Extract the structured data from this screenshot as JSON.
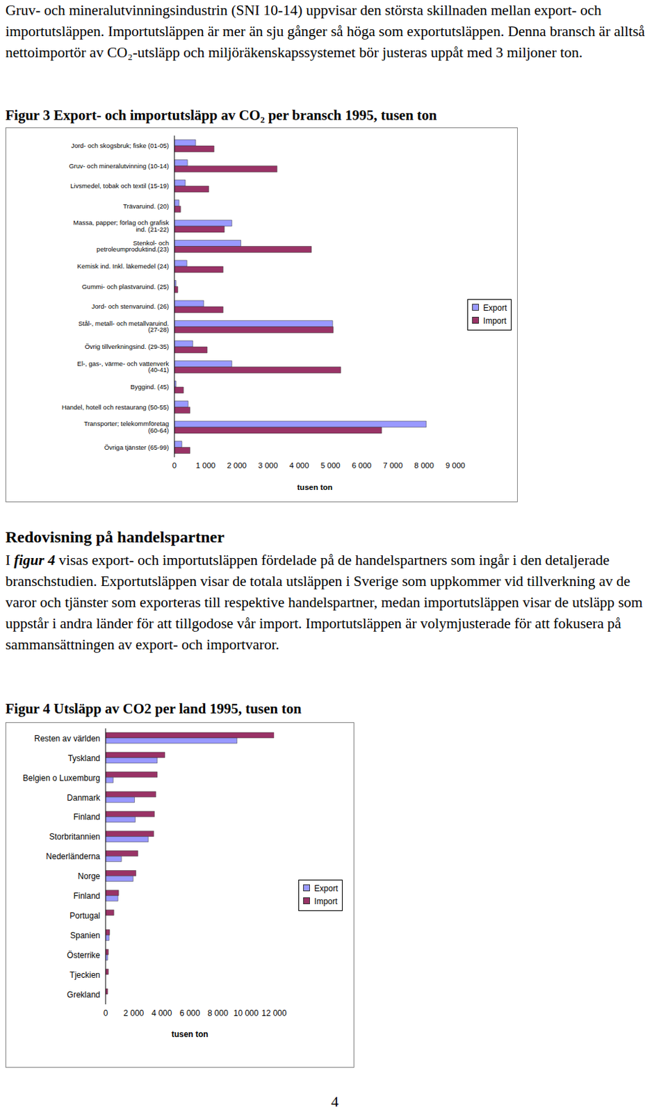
{
  "text": {
    "paragraph1": "Gruv- och mineralutvinningsindustrin (SNI 10-14) uppvisar den största skillnaden mellan export- och importutsläppen. Importutsläppen är mer än sju gånger så höga som exportutsläppen. Denna bransch är alltså nettoimportör av CO₂-utsläpp och miljöräkenskapssystemet bör justeras uppåt med 3 miljoner ton.",
    "heading": "Redovisning på handelspartner",
    "paragraph2": {
      "before": "I ",
      "emphasis": "figur 4",
      "after": " visas export- och importutsläppen fördelade på de handelspartners som ingår i den detaljerade branschstudien. Exportutsläppen visar de totala utsläppen i Sverige som uppkommer vid tillverkning av de varor och tjänster som exporteras till respektive handelspartner, medan importutsläppen visar de utsläpp som uppstår i andra länder för att tillgodose vår import. Importutsläppen är volymjusterade för att fokusera på sammansättningen av export- och importvaror."
    },
    "page_number": "4"
  },
  "chart_data": [
    {
      "type": "bar",
      "orientation": "horizontal",
      "title": "Figur 3 Export- och importutsläpp av CO₂ per bransch 1995, tusen ton",
      "categories": [
        "Jord- och skogsbruk; fiske (01-05)",
        "Gruv- och mineralutvinning (10-14)",
        "Livsmedel, tobak och textil (15-19)",
        "Trävaruind. (20)",
        "Massa, papper; förlag och grafisk ind. (21-22)",
        "Stenkol- och petroleumproduktind.(23)",
        "Kemisk ind. Inkl. läkemedel (24)",
        "Gummi- och plastvaruind. (25)",
        "Jord- och stenvaruind. (26)",
        "Stål-, metall- och metallvaruind. (27-28)",
        "Övrig tillverkningsind. (29-35)",
        "El-, gas-, värme- och vattenverk (40-41)",
        "Byggind. (45)",
        "Handel, hotell och restaurang (50-55)",
        "Transporter; telekommföretag (60-64)",
        "Övriga tjänster (65-99)"
      ],
      "series": [
        {
          "name": "Export",
          "color": "#9999ff",
          "values": [
            680,
            420,
            350,
            150,
            1840,
            2130,
            400,
            50,
            940,
            5070,
            590,
            1840,
            50,
            440,
            8070,
            240
          ]
        },
        {
          "name": "Import",
          "color": "#993366",
          "values": [
            1270,
            3290,
            1100,
            200,
            1600,
            4390,
            1560,
            110,
            1560,
            5090,
            1050,
            5330,
            290,
            500,
            6640,
            500
          ]
        }
      ],
      "xlim": [
        0,
        9000
      ],
      "xticks": [
        0,
        {
          "value": 1000,
          "label": "1 000"
        },
        {
          "value": 2000,
          "label": "2 000"
        },
        {
          "value": 3000,
          "label": "3 000"
        },
        {
          "value": 4000,
          "label": "4 000"
        },
        {
          "value": 5000,
          "label": "5 000"
        },
        {
          "value": 6000,
          "label": "6 000"
        },
        {
          "value": 7000,
          "label": "7 000"
        },
        {
          "value": 8000,
          "label": "8 000"
        },
        {
          "value": 9000,
          "label": "9 000"
        }
      ],
      "xlabel": "tusen ton",
      "legend": "right",
      "grid": false
    },
    {
      "type": "bar",
      "orientation": "horizontal",
      "title": "Figur 4 Utsläpp av CO2 per land 1995, tusen ton",
      "categories": [
        "Resten av världen",
        "Tyskland",
        "Belgien o Luxemburg",
        "Danmark",
        "Finland",
        "Storbritannien",
        "Nederländerna",
        "Norge",
        "Finland",
        "Portugal",
        "Spanien",
        "Österrike",
        "Tjeckien",
        "Grekland"
      ],
      "series": [
        {
          "name": "Import",
          "color": "#993366",
          "values": [
            12000,
            4220,
            3680,
            3580,
            3480,
            3430,
            2300,
            2160,
            930,
            590,
            290,
            200,
            200,
            150
          ]
        },
        {
          "name": "Export",
          "color": "#9999ff",
          "values": [
            9360,
            3680,
            540,
            2060,
            2110,
            3040,
            1130,
            1960,
            880,
            0,
            250,
            150,
            0,
            0
          ]
        }
      ],
      "xlim": [
        0,
        12000
      ],
      "xticks": [
        0,
        {
          "value": 2000,
          "label": "2 000"
        },
        {
          "value": 4000,
          "label": "4 000"
        },
        {
          "value": 6000,
          "label": "6 000"
        },
        {
          "value": 8000,
          "label": "8 000"
        },
        {
          "value": 10000,
          "label": "10 000"
        },
        {
          "value": 12000,
          "label": "12 000"
        }
      ],
      "xlabel": "tusen ton",
      "legend": "right",
      "grid": false
    }
  ]
}
